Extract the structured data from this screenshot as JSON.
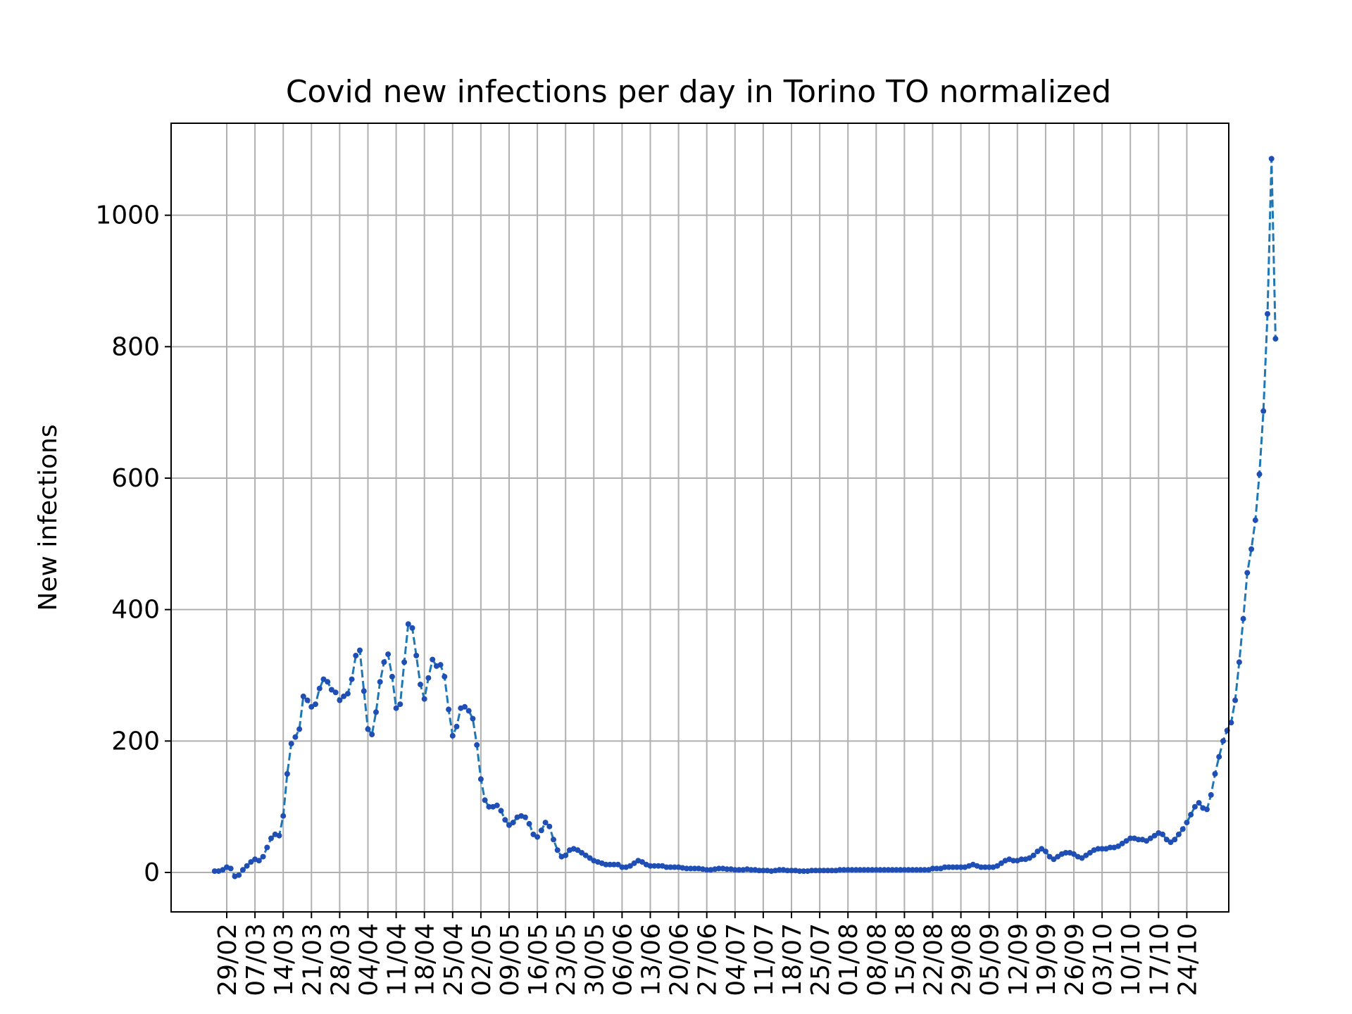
{
  "chart_data": {
    "type": "line",
    "title": "Covid new infections per day in Torino TO normalized",
    "xlabel": "",
    "ylabel": "New infections",
    "ylim": [
      -60,
      1140
    ],
    "yticks": [
      0,
      200,
      400,
      600,
      800,
      1000
    ],
    "xtick_labels": [
      "29/02",
      "07/03",
      "14/03",
      "21/03",
      "28/03",
      "04/04",
      "11/04",
      "18/04",
      "25/04",
      "02/05",
      "09/05",
      "16/05",
      "23/05",
      "30/05",
      "06/06",
      "13/06",
      "20/06",
      "27/06",
      "04/07",
      "11/07",
      "18/07",
      "25/07",
      "01/08",
      "08/08",
      "15/08",
      "22/08",
      "29/08",
      "05/09",
      "12/09",
      "19/09",
      "26/09",
      "03/10",
      "10/10",
      "17/10",
      "24/10"
    ],
    "grid": true,
    "line_style": "dashed",
    "marker": "dot",
    "colors": {
      "line": "#1f77b4",
      "marker": "#1f4fb4",
      "grid": "#b0b0b0",
      "axes": "#000000"
    },
    "x_start": "26/02",
    "series": [
      {
        "name": "",
        "values": [
          2,
          2,
          4,
          8,
          6,
          -6,
          -4,
          4,
          10,
          16,
          20,
          18,
          24,
          38,
          52,
          58,
          56,
          86,
          150,
          196,
          206,
          218,
          268,
          262,
          252,
          256,
          280,
          294,
          290,
          278,
          274,
          262,
          268,
          272,
          294,
          330,
          338,
          276,
          218,
          210,
          244,
          290,
          320,
          332,
          298,
          250,
          256,
          320,
          378,
          372,
          330,
          286,
          264,
          296,
          324,
          314,
          316,
          298,
          248,
          208,
          222,
          250,
          252,
          246,
          234,
          194,
          142,
          110,
          100,
          100,
          102,
          94,
          80,
          72,
          76,
          84,
          86,
          84,
          74,
          58,
          54,
          64,
          76,
          70,
          50,
          34,
          24,
          26,
          34,
          36,
          34,
          30,
          26,
          22,
          18,
          16,
          14,
          12,
          12,
          12,
          12,
          8,
          8,
          10,
          14,
          18,
          16,
          12,
          10,
          10,
          10,
          10,
          8,
          8,
          8,
          8,
          7,
          6,
          6,
          6,
          6,
          5,
          4,
          4,
          5,
          6,
          6,
          5,
          5,
          4,
          4,
          4,
          5,
          4,
          4,
          3,
          3,
          3,
          2,
          3,
          4,
          4,
          3,
          3,
          3,
          2,
          2,
          2,
          3,
          3,
          3,
          3,
          3,
          3,
          3,
          4,
          4,
          4,
          4,
          4,
          4,
          4,
          4,
          4,
          4,
          4,
          4,
          4,
          4,
          4,
          4,
          4,
          4,
          4,
          4,
          4,
          4,
          4,
          6,
          6,
          6,
          8,
          8,
          8,
          8,
          8,
          8,
          10,
          12,
          10,
          8,
          8,
          8,
          8,
          10,
          14,
          18,
          20,
          18,
          18,
          20,
          20,
          22,
          26,
          32,
          36,
          32,
          24,
          20,
          24,
          28,
          30,
          30,
          28,
          24,
          22,
          26,
          30,
          34,
          36,
          36,
          36,
          38,
          38,
          40,
          44,
          48,
          52,
          52,
          50,
          50,
          48,
          52,
          56,
          60,
          58,
          50,
          46,
          50,
          58,
          66,
          76,
          88,
          100,
          106,
          98,
          96,
          118,
          150,
          176,
          200,
          216,
          228,
          262,
          320,
          386,
          456,
          492,
          536,
          606,
          702,
          850,
          1086,
          812
        ]
      }
    ]
  }
}
